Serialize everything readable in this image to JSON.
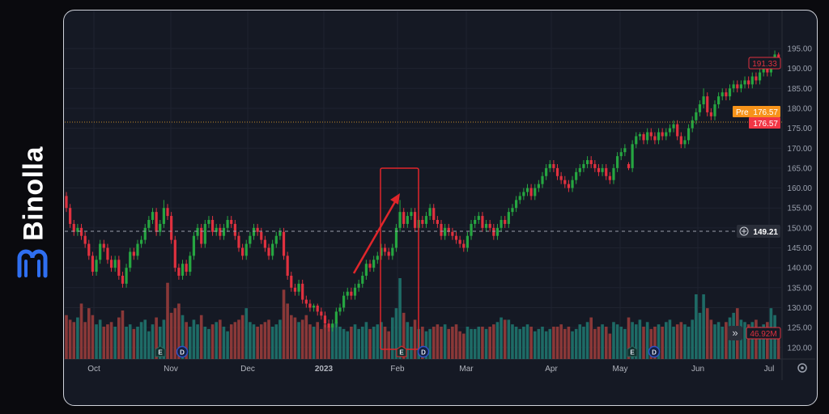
{
  "brand": {
    "name": "Binolla",
    "accent": "#2f6ff0"
  },
  "price_scale": {
    "ticks": [
      "195.00",
      "190.00",
      "185.00",
      "180.00",
      "175.00",
      "170.00",
      "165.00",
      "160.00",
      "155.00",
      "150.00",
      "145.00",
      "140.00",
      "135.00",
      "130.00",
      "125.00",
      "120.00"
    ]
  },
  "labels": {
    "last_price": "191.33",
    "pre_label": "Pre",
    "pre_price": "176.57",
    "prev_close_price": "176.57",
    "crosshair_price": "149.21",
    "volume_last": "46.92M",
    "event_earnings": "E",
    "event_dividend": "D",
    "scroll_button": "»"
  },
  "colors": {
    "up": "#26a641",
    "down": "#e0313f",
    "vol_up": "#1e6b66",
    "vol_down": "#8a3838",
    "annotation": "#e0262b",
    "pre": "#f7931a",
    "last": "#f23645"
  },
  "chart_data": {
    "type": "candlestick",
    "title": "",
    "xlabel": "",
    "ylabel": "",
    "x_ticks": [
      "Oct",
      "Nov",
      "Dec",
      "2023",
      "Feb",
      "Mar",
      "Apr",
      "May",
      "Jun",
      "Jul"
    ],
    "ylim": [
      117,
      197
    ],
    "grid": true,
    "horizontal_lines": [
      149.21,
      176.57
    ],
    "ohlc": [
      [
        158,
        159,
        154,
        155
      ],
      [
        155,
        156,
        150,
        151
      ],
      [
        151,
        152,
        148,
        149
      ],
      [
        149,
        151,
        148,
        150
      ],
      [
        150,
        151,
        147,
        148
      ],
      [
        148,
        149,
        145,
        146
      ],
      [
        146,
        147,
        142,
        143
      ],
      [
        143,
        144,
        138,
        139
      ],
      [
        139,
        143,
        138,
        142
      ],
      [
        142,
        147,
        141,
        146
      ],
      [
        146,
        147,
        144,
        145
      ],
      [
        145,
        146,
        141,
        142
      ],
      [
        142,
        143,
        139,
        140
      ],
      [
        140,
        143,
        139,
        142
      ],
      [
        142,
        143,
        137,
        138
      ],
      [
        138,
        139,
        135,
        136
      ],
      [
        136,
        141,
        135,
        140
      ],
      [
        140,
        145,
        139,
        144
      ],
      [
        144,
        145,
        142,
        143
      ],
      [
        143,
        147,
        142,
        146
      ],
      [
        146,
        148,
        145,
        147
      ],
      [
        147,
        151,
        146,
        150
      ],
      [
        150,
        153,
        149,
        152
      ],
      [
        152,
        155,
        151,
        154
      ],
      [
        154,
        155,
        148,
        149
      ],
      [
        149,
        152,
        148,
        151
      ],
      [
        151,
        157,
        150,
        155
      ],
      [
        155,
        156,
        152,
        153
      ],
      [
        153,
        154,
        146,
        147
      ],
      [
        147,
        148,
        139,
        140
      ],
      [
        140,
        141,
        137,
        138
      ],
      [
        138,
        142,
        137,
        141
      ],
      [
        141,
        142,
        138,
        139
      ],
      [
        139,
        144,
        138,
        143
      ],
      [
        143,
        149,
        142,
        148
      ],
      [
        148,
        151,
        147,
        150
      ],
      [
        150,
        151,
        145,
        146
      ],
      [
        146,
        152,
        145,
        151
      ],
      [
        151,
        153,
        150,
        152
      ],
      [
        152,
        153,
        148,
        149
      ],
      [
        149,
        151,
        148,
        150
      ],
      [
        150,
        151,
        147,
        148
      ],
      [
        148,
        151,
        147,
        150
      ],
      [
        150,
        153,
        149,
        152
      ],
      [
        152,
        153,
        150,
        151
      ],
      [
        151,
        152,
        147,
        148
      ],
      [
        148,
        149,
        144,
        145
      ],
      [
        145,
        146,
        142,
        143
      ],
      [
        143,
        147,
        142,
        146
      ],
      [
        146,
        149,
        145,
        148
      ],
      [
        148,
        151,
        147,
        150
      ],
      [
        150,
        151,
        148,
        149
      ],
      [
        149,
        150,
        146,
        147
      ],
      [
        147,
        148,
        144,
        145
      ],
      [
        145,
        146,
        142,
        143
      ],
      [
        143,
        147,
        142,
        146
      ],
      [
        146,
        149,
        145,
        148
      ],
      [
        148,
        150,
        147,
        149
      ],
      [
        149,
        150,
        142,
        143
      ],
      [
        143,
        144,
        137,
        138
      ],
      [
        138,
        139,
        134,
        135
      ],
      [
        135,
        136,
        133,
        134
      ],
      [
        134,
        137,
        133,
        136
      ],
      [
        136,
        137,
        131,
        132
      ],
      [
        132,
        133,
        130,
        131
      ],
      [
        131,
        132,
        129,
        130
      ],
      [
        130,
        131,
        129,
        130.5
      ],
      [
        130.5,
        131,
        128,
        129
      ],
      [
        129,
        130,
        127,
        128
      ],
      [
        128,
        129,
        125,
        126
      ],
      [
        126,
        127,
        124,
        125
      ],
      [
        125,
        127,
        124,
        126
      ],
      [
        126,
        130,
        125,
        129
      ],
      [
        129,
        131,
        128,
        130
      ],
      [
        130,
        134,
        129,
        133
      ],
      [
        133,
        135,
        132,
        134
      ],
      [
        134,
        135,
        132,
        133
      ],
      [
        133,
        136,
        132,
        135
      ],
      [
        135,
        137,
        134,
        136
      ],
      [
        136,
        139,
        135,
        138
      ],
      [
        138,
        142,
        137,
        141
      ],
      [
        141,
        142,
        139,
        140
      ],
      [
        140,
        143,
        139,
        142
      ],
      [
        142,
        144,
        141,
        143
      ],
      [
        143,
        146,
        142,
        145
      ],
      [
        145,
        146,
        143,
        144
      ],
      [
        144,
        145,
        142,
        143
      ],
      [
        143,
        146,
        142,
        145
      ],
      [
        145,
        151,
        144,
        150
      ],
      [
        150,
        157,
        149,
        154
      ],
      [
        154,
        155,
        150,
        151
      ],
      [
        151,
        154,
        150,
        153
      ],
      [
        153,
        155,
        152,
        154
      ],
      [
        154,
        155,
        149,
        150
      ],
      [
        150,
        153,
        149,
        152
      ],
      [
        152,
        153,
        150,
        151
      ],
      [
        151,
        154,
        150,
        153
      ],
      [
        153,
        156,
        152,
        155
      ],
      [
        155,
        156,
        151,
        152
      ],
      [
        152,
        153,
        150,
        151
      ],
      [
        151,
        152,
        147,
        148
      ],
      [
        148,
        151,
        147,
        150
      ],
      [
        150,
        151,
        148,
        149
      ],
      [
        149,
        150,
        147,
        148
      ],
      [
        148,
        149,
        146,
        147
      ],
      [
        147,
        148,
        145,
        146
      ],
      [
        146,
        147,
        144,
        145
      ],
      [
        145,
        149,
        144,
        148
      ],
      [
        148,
        152,
        147,
        151
      ],
      [
        151,
        153,
        150,
        152
      ],
      [
        152,
        154,
        151,
        153
      ],
      [
        153,
        154,
        149,
        150
      ],
      [
        150,
        152,
        149,
        151
      ],
      [
        151,
        152,
        149,
        150
      ],
      [
        150,
        151,
        147,
        148
      ],
      [
        148,
        151,
        147,
        150
      ],
      [
        150,
        153,
        149,
        152
      ],
      [
        152,
        153,
        150,
        151
      ],
      [
        151,
        155,
        150,
        154
      ],
      [
        154,
        156,
        153,
        155
      ],
      [
        155,
        158,
        154,
        157
      ],
      [
        157,
        159,
        156,
        158
      ],
      [
        158,
        160,
        157,
        159
      ],
      [
        159,
        161,
        158,
        160
      ],
      [
        160,
        161,
        157,
        158
      ],
      [
        158,
        161,
        157,
        160
      ],
      [
        160,
        162,
        159,
        161
      ],
      [
        161,
        164,
        160,
        163
      ],
      [
        163,
        166,
        162,
        165
      ],
      [
        165,
        167,
        164,
        166
      ],
      [
        166,
        167,
        164,
        165
      ],
      [
        165,
        166,
        162,
        163
      ],
      [
        163,
        164,
        161,
        162
      ],
      [
        162,
        163,
        160,
        161
      ],
      [
        161,
        162,
        159,
        160
      ],
      [
        160,
        163,
        159,
        162
      ],
      [
        162,
        165,
        161,
        164
      ],
      [
        164,
        166,
        163,
        165
      ],
      [
        165,
        167,
        164,
        166
      ],
      [
        166,
        168,
        165,
        167
      ],
      [
        167,
        168,
        165,
        166
      ],
      [
        166,
        167,
        164,
        165
      ],
      [
        165,
        166,
        163,
        164
      ],
      [
        164,
        166,
        163,
        165
      ],
      [
        165,
        166,
        162,
        163
      ],
      [
        163,
        164,
        161,
        162
      ],
      [
        162,
        166,
        161,
        165
      ],
      [
        165,
        169,
        164,
        168
      ],
      [
        168,
        170,
        167,
        169
      ],
      [
        169,
        171,
        168,
        170
      ],
      [
        166,
        166.5,
        164.5,
        165
      ],
      [
        165,
        172,
        164,
        171
      ],
      [
        171,
        174,
        170,
        173
      ],
      [
        173,
        174,
        172,
        173.5
      ],
      [
        173.5,
        174,
        171,
        172
      ],
      [
        172,
        175,
        171,
        174
      ],
      [
        174,
        175,
        172,
        173
      ],
      [
        173,
        174,
        171,
        172
      ],
      [
        172,
        175,
        171,
        174
      ],
      [
        174,
        175,
        172,
        173
      ],
      [
        173,
        175,
        172,
        174
      ],
      [
        174,
        176,
        173,
        175
      ],
      [
        175,
        177,
        174,
        176
      ],
      [
        176,
        177,
        172,
        173
      ],
      [
        173,
        174,
        170,
        171
      ],
      [
        171,
        173,
        170,
        172
      ],
      [
        172,
        176,
        171,
        175
      ],
      [
        175,
        178,
        174,
        177
      ],
      [
        177,
        180,
        176,
        179
      ],
      [
        179,
        182,
        178,
        181
      ],
      [
        181,
        185,
        180,
        183
      ],
      [
        183,
        184,
        178,
        179
      ],
      [
        179,
        180,
        177,
        178
      ],
      [
        178,
        182,
        177,
        181
      ],
      [
        181,
        184,
        180,
        183
      ],
      [
        183,
        185,
        182,
        184
      ],
      [
        184,
        185,
        182,
        183
      ],
      [
        183,
        186,
        182,
        185
      ],
      [
        185,
        187,
        184,
        186
      ],
      [
        186,
        187,
        184,
        185
      ],
      [
        185,
        187,
        184,
        186
      ],
      [
        186,
        188,
        185,
        187
      ],
      [
        187,
        188,
        185,
        186
      ],
      [
        186,
        189,
        185,
        188
      ],
      [
        188,
        189,
        186,
        187
      ],
      [
        187,
        190,
        186,
        189
      ],
      [
        189,
        191,
        188,
        190
      ],
      [
        190,
        191,
        188,
        189
      ],
      [
        189,
        192,
        188,
        191
      ],
      [
        191,
        194.5,
        190,
        193.5
      ],
      [
        193.5,
        194,
        190.5,
        191.33
      ]
    ],
    "volume_millions": [
      95,
      85,
      80,
      90,
      120,
      80,
      110,
      95,
      75,
      85,
      70,
      75,
      80,
      70,
      90,
      105,
      70,
      75,
      65,
      70,
      80,
      85,
      60,
      75,
      90,
      70,
      85,
      165,
      100,
      110,
      120,
      95,
      80,
      70,
      85,
      75,
      95,
      70,
      65,
      75,
      80,
      85,
      70,
      60,
      75,
      80,
      85,
      95,
      110,
      80,
      75,
      70,
      75,
      80,
      85,
      70,
      75,
      85,
      150,
      120,
      95,
      90,
      80,
      85,
      95,
      75,
      70,
      80,
      65,
      75,
      70,
      75,
      80,
      70,
      65,
      60,
      70,
      75,
      65,
      70,
      80,
      65,
      70,
      75,
      80,
      70,
      60,
      90,
      110,
      175,
      100,
      80,
      70,
      85,
      65,
      70,
      60,
      65,
      70,
      75,
      70,
      75,
      65,
      70,
      75,
      60,
      55,
      70,
      65,
      65,
      70,
      70,
      65,
      70,
      75,
      80,
      90,
      85,
      85,
      75,
      70,
      65,
      70,
      75,
      70,
      60,
      65,
      70,
      60,
      65,
      70,
      70,
      75,
      65,
      70,
      60,
      65,
      75,
      70,
      80,
      90,
      65,
      70,
      75,
      70,
      55,
      80,
      75,
      70,
      65,
      90,
      80,
      75,
      85,
      70,
      80,
      65,
      70,
      75,
      70,
      80,
      85,
      70,
      75,
      80,
      75,
      70,
      85,
      140,
      100,
      140,
      110,
      85,
      75,
      80,
      70,
      80,
      90,
      100,
      110,
      85,
      80,
      75,
      80,
      85,
      70,
      75,
      80,
      110,
      95,
      47
    ]
  }
}
